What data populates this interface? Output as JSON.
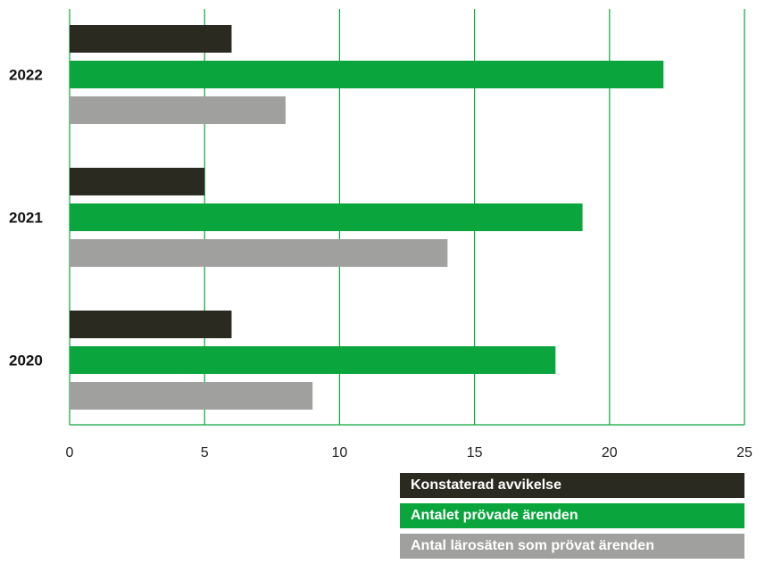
{
  "chart_data": {
    "type": "bar",
    "orientation": "horizontal",
    "categories": [
      "2022",
      "2021",
      "2020"
    ],
    "series": [
      {
        "name": "Konstaterad avvikelse",
        "color": "#2b2a20",
        "values": [
          6,
          5,
          6
        ]
      },
      {
        "name": "Antalet prövade ärenden",
        "color": "#0aa53c",
        "values": [
          22,
          19,
          18
        ]
      },
      {
        "name": "Antal lärosäten som prövat ärenden",
        "color": "#a0a09f",
        "values": [
          8,
          14,
          9
        ]
      }
    ],
    "xlim": [
      0,
      25
    ],
    "xticks": [
      "0",
      "5",
      "10",
      "15",
      "20",
      "25"
    ],
    "grid": true,
    "grid_color": "#0aa53c",
    "legend_placement": "bottom-right"
  }
}
